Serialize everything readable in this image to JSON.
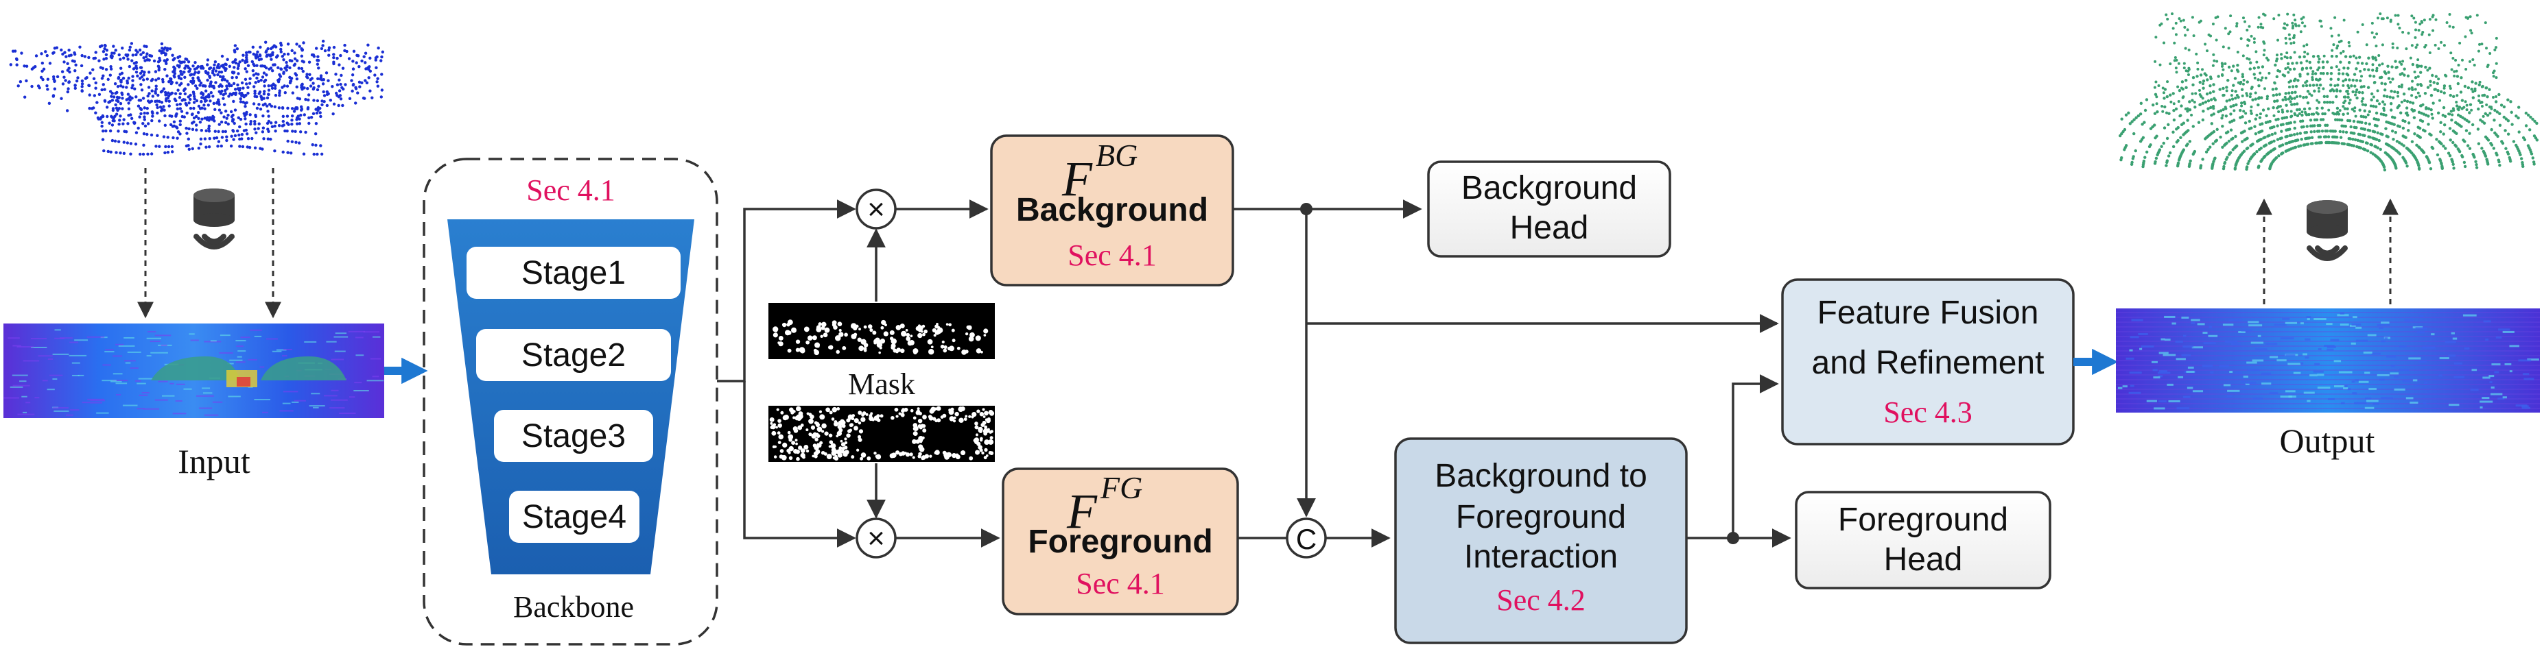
{
  "input": {
    "label": "Input"
  },
  "output": {
    "label": "Output"
  },
  "backbone": {
    "section": "Sec 4.1",
    "stages": [
      "Stage1",
      "Stage2",
      "Stage3",
      "Stage4"
    ],
    "label": "Backbone"
  },
  "mask": {
    "label": "Mask"
  },
  "background_feature": {
    "symbol": "F",
    "superscript": "BG",
    "title": "Background",
    "section": "Sec 4.1"
  },
  "foreground_feature": {
    "symbol": "F",
    "superscript": "FG",
    "title": "Foreground",
    "section": "Sec 4.1"
  },
  "background_head": {
    "line1": "Background",
    "line2": "Head"
  },
  "foreground_head": {
    "line1": "Foreground",
    "line2": "Head"
  },
  "interaction": {
    "line1": "Background to",
    "line2": "Foreground",
    "line3": "Interaction",
    "section": "Sec 4.2"
  },
  "fusion": {
    "line1": "Feature Fusion",
    "line2": "and Refinement",
    "section": "Sec 4.3"
  },
  "concat": {
    "symbol": "C"
  },
  "multiply": {
    "symbol": "×"
  },
  "colors": {
    "section_text": "#e0115f",
    "feature_fill": "#f7d9c0",
    "blue_box_fill": "#c9d9e8",
    "blue_box_fill_light": "#dce7f1",
    "backbone_blue": "#1f6fc0",
    "arrow_blue": "#1e78d2",
    "point_blue": "#1a2fd4",
    "point_green": "#3aa071"
  }
}
